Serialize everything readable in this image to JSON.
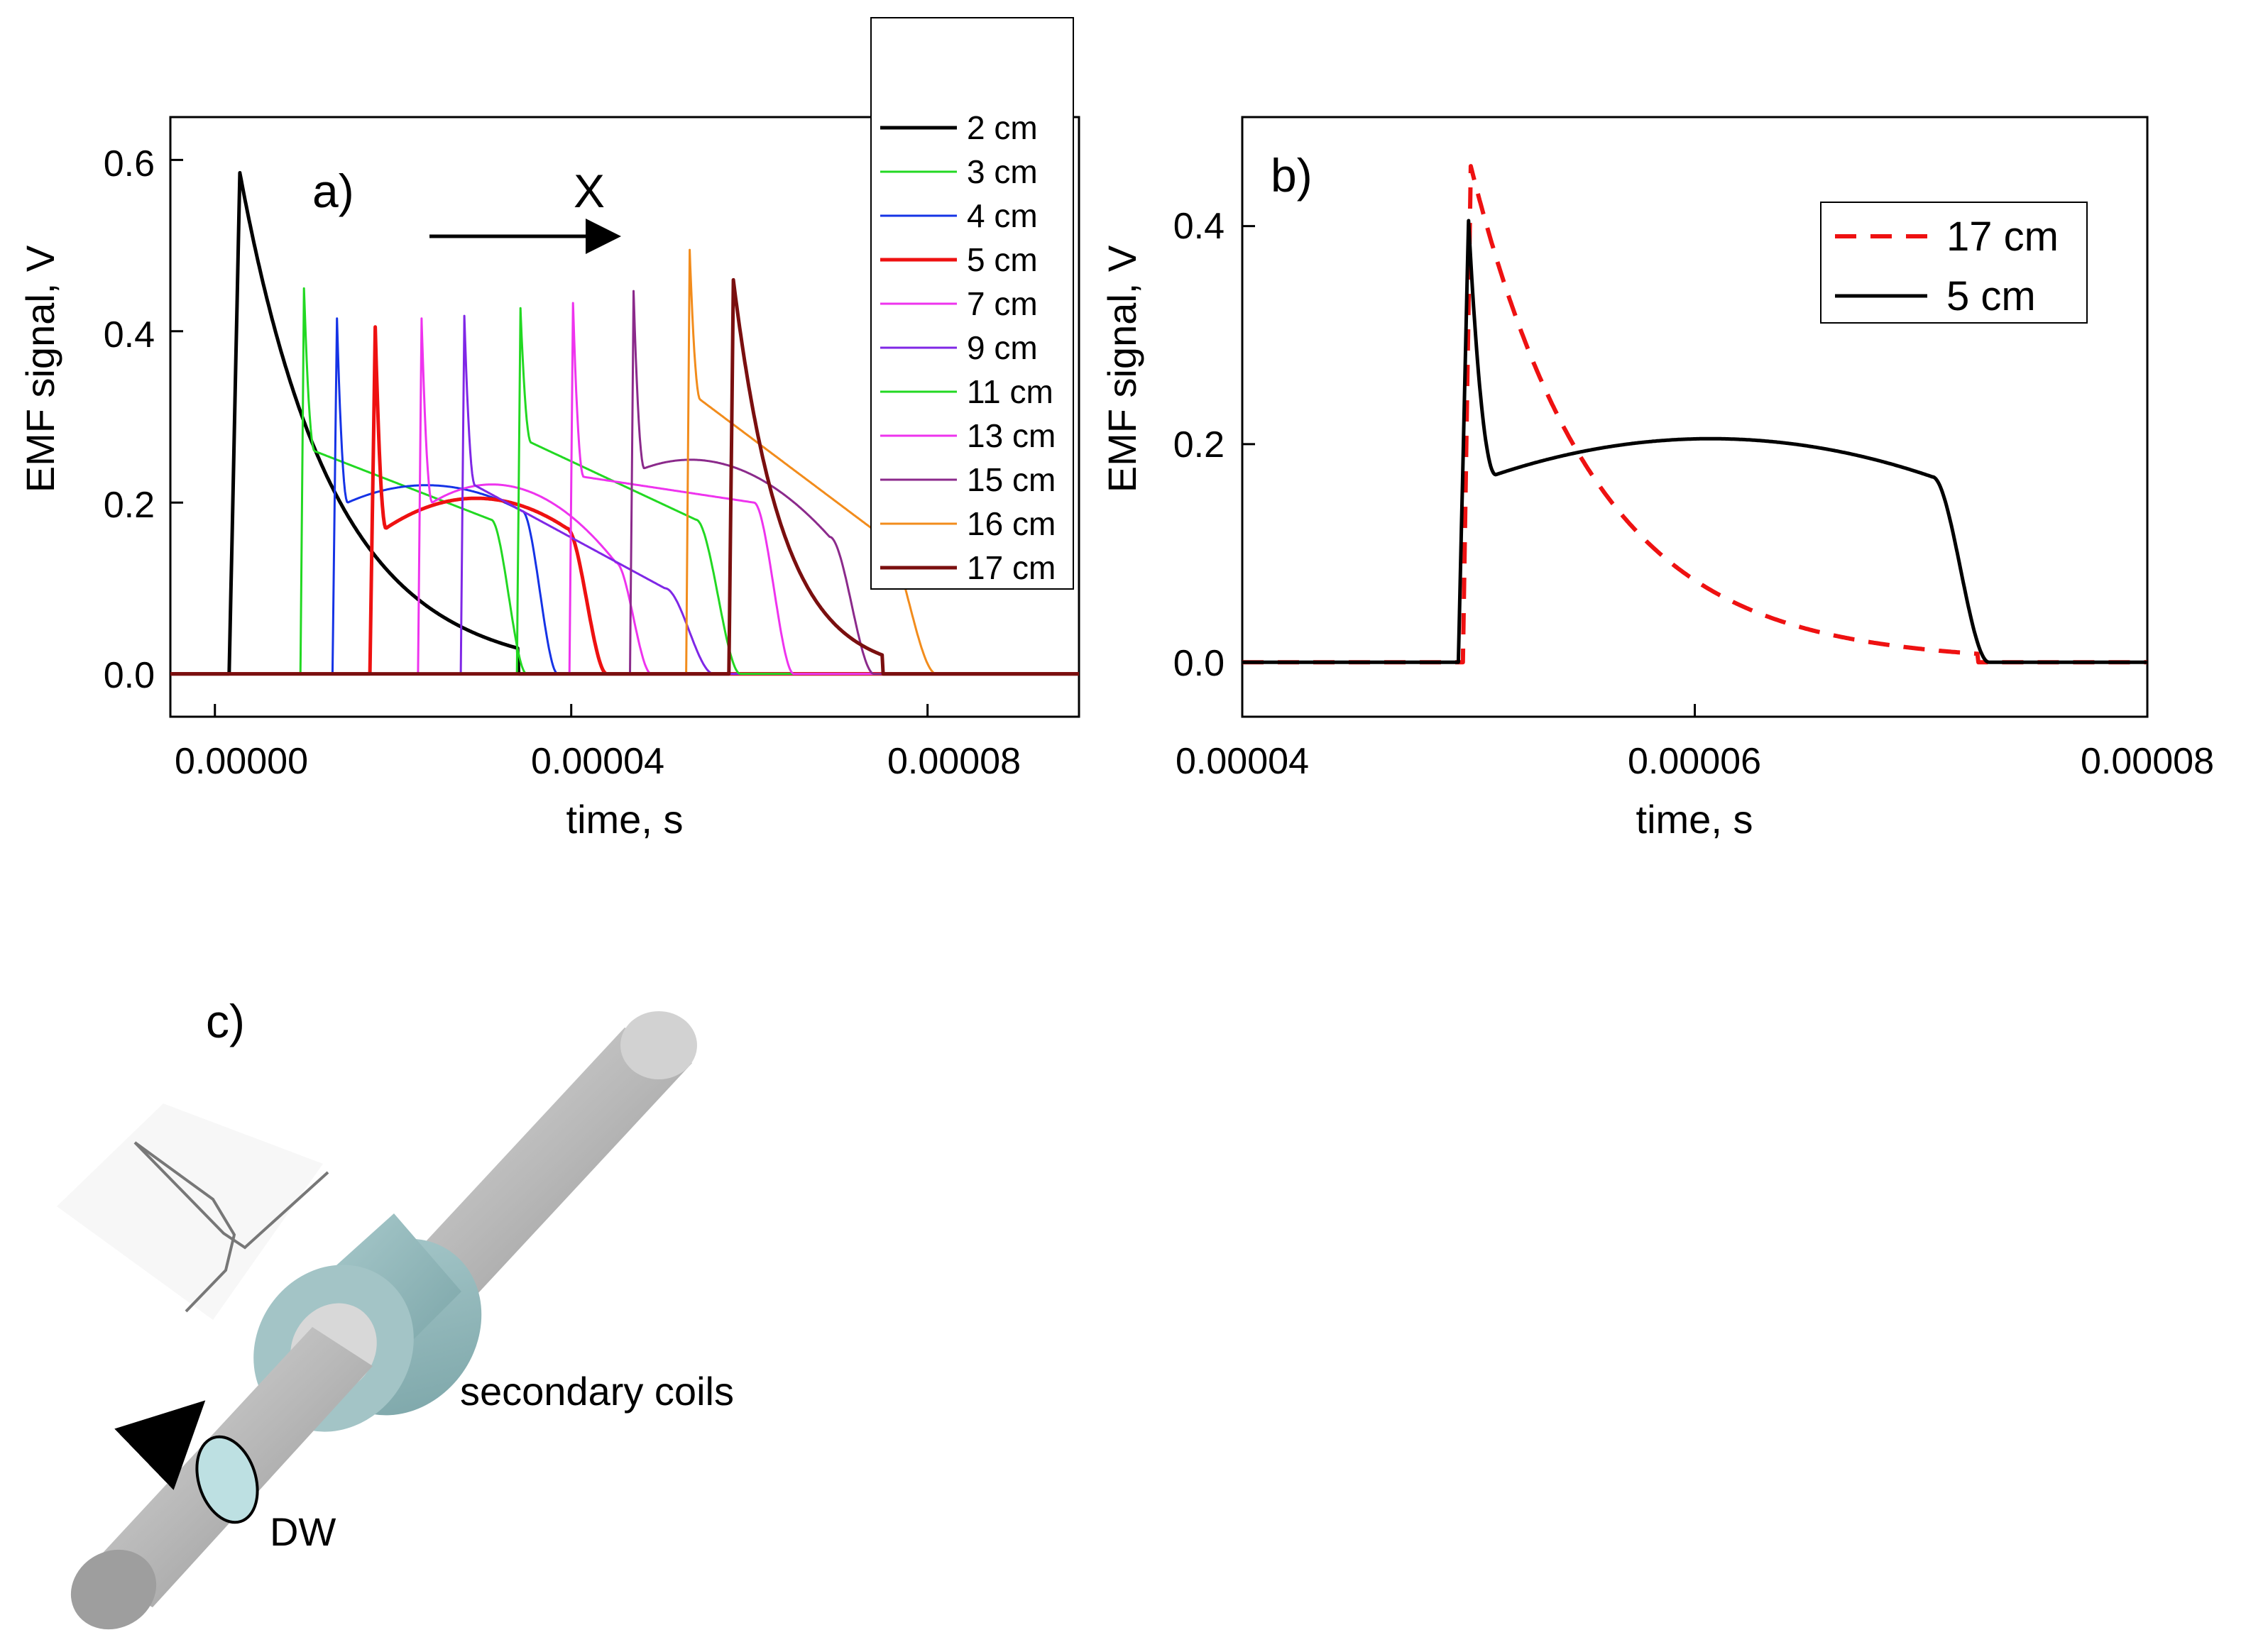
{
  "figure": {
    "panel_a_label": "a)",
    "panel_b_label": "b)",
    "panel_c_label": "c)",
    "arrow_label": "X",
    "diagram": {
      "coil_label": "secondary coils",
      "wall_label": "DW"
    }
  },
  "chart_data": [
    {
      "type": "line",
      "panel": "a)",
      "title": "",
      "xlabel": "time, s",
      "ylabel": "EMF signal, V",
      "xlim": [
        -5e-06,
        9.7e-05
      ],
      "ylim": [
        -0.05,
        0.65
      ],
      "xticks": [
        "0.00000",
        "0.00004",
        "0.00008"
      ],
      "xtick_values": [
        0,
        4e-05,
        8e-05
      ],
      "yticks": [
        "0.0",
        "0.2",
        "0.4",
        "0.6"
      ],
      "ytick_values": [
        0,
        0.2,
        0.4,
        0.6
      ],
      "legend_position": "top-right-outside",
      "series": [
        {
          "name": "2 cm",
          "color": "#000000",
          "width": 5,
          "start": 1.6e-06,
          "peak_time": 2.8e-06,
          "peak": 0.585,
          "kind": "decay",
          "tau": 1.05e-05,
          "end": 3.4e-05
        },
        {
          "name": "3 cm",
          "color": "#22d822",
          "width": 3,
          "start": 9.6e-06,
          "peak_time": 1e-05,
          "peak": 0.45,
          "kind": "plateau",
          "plateau_start": 0.26,
          "plateau_end": 0.18,
          "fall": 3.1e-05,
          "end": 3.5e-05
        },
        {
          "name": "4 cm",
          "color": "#1533e6",
          "width": 3,
          "start": 1.32e-05,
          "peak_time": 1.37e-05,
          "peak": 0.415,
          "kind": "plateau",
          "plateau_start": 0.2,
          "plateau_mid": 0.22,
          "plateau_end": 0.19,
          "fall": 3.45e-05,
          "end": 3.85e-05
        },
        {
          "name": "5 cm",
          "color": "#ee1111",
          "width": 5,
          "start": 1.74e-05,
          "peak_time": 1.8e-05,
          "peak": 0.405,
          "kind": "plateau",
          "plateau_start": 0.17,
          "plateau_mid": 0.205,
          "plateau_end": 0.17,
          "fall": 3.95e-05,
          "end": 4.4e-05
        },
        {
          "name": "7 cm",
          "color": "#ee33ee",
          "width": 3,
          "start": 2.28e-05,
          "peak_time": 2.32e-05,
          "peak": 0.415,
          "kind": "plateau",
          "plateau_start": 0.2,
          "plateau_mid": 0.215,
          "plateau_end": 0.13,
          "fall": 4.5e-05,
          "end": 4.9e-05
        },
        {
          "name": "9 cm",
          "color": "#7f27e6",
          "width": 3,
          "start": 2.76e-05,
          "peak_time": 2.8e-05,
          "peak": 0.418,
          "kind": "plateau",
          "plateau_start": 0.22,
          "plateau_end": 0.1,
          "fall": 5.05e-05,
          "end": 5.6e-05
        },
        {
          "name": "11 cm",
          "color": "#22d822",
          "width": 3,
          "start": 3.39e-05,
          "peak_time": 3.43e-05,
          "peak": 0.427,
          "kind": "plateau",
          "plateau_start": 0.27,
          "plateau_end": 0.18,
          "fall": 5.4e-05,
          "end": 5.9e-05
        },
        {
          "name": "13 cm",
          "color": "#ee33ee",
          "width": 3,
          "start": 3.98e-05,
          "peak_time": 4.02e-05,
          "peak": 0.433,
          "kind": "plateau",
          "plateau_start": 0.23,
          "plateau_end": 0.2,
          "fall": 6.05e-05,
          "end": 6.5e-05
        },
        {
          "name": "15 cm",
          "color": "#8b2a8b",
          "width": 3,
          "start": 4.66e-05,
          "peak_time": 4.7e-05,
          "peak": 0.447,
          "kind": "plateau",
          "plateau_start": 0.24,
          "plateau_mid": 0.24,
          "plateau_end": 0.16,
          "fall": 6.9e-05,
          "end": 7.4e-05
        },
        {
          "name": "16 cm",
          "color": "#f28c1c",
          "width": 3,
          "start": 5.29e-05,
          "peak_time": 5.33e-05,
          "peak": 0.495,
          "kind": "plateau",
          "plateau_start": 0.32,
          "plateau_end": 0.16,
          "fall": 7.5e-05,
          "end": 8.1e-05
        },
        {
          "name": "17 cm",
          "color": "#7a0f0f",
          "width": 5,
          "start": 5.77e-05,
          "peak_time": 5.82e-05,
          "peak": 0.46,
          "kind": "decay",
          "tau": 5.5e-06,
          "end": 7.5e-05
        }
      ]
    },
    {
      "type": "line",
      "panel": "b)",
      "title": "",
      "xlabel": "time, s",
      "ylabel": "EMF signal, V",
      "xlim": [
        4e-05,
        8e-05
      ],
      "ylim": [
        -0.05,
        0.5
      ],
      "xticks": [
        "0.00004",
        "0.00006",
        "0.00008"
      ],
      "xtick_values": [
        4e-05,
        6e-05,
        8e-05
      ],
      "yticks": [
        "0.0",
        "0.2",
        "0.4"
      ],
      "ytick_values": [
        0,
        0.2,
        0.4
      ],
      "legend_position": "top-right",
      "series": [
        {
          "name": "17 cm",
          "color": "#ee1111",
          "width": 6,
          "dash": "30,20",
          "start": 4.975e-05,
          "peak_time": 5.01e-05,
          "peak": 0.455,
          "kind": "decay",
          "tau": 5.5e-06,
          "end": 7.25e-05
        },
        {
          "name": "5 cm",
          "color": "#000000",
          "width": 5,
          "start": 4.955e-05,
          "peak_time": 5e-05,
          "peak": 0.405,
          "kind": "plateau",
          "plateau_start": 0.172,
          "plateau_mid": 0.205,
          "plateau_end": 0.17,
          "fall": 7.05e-05,
          "end": 7.3e-05
        }
      ]
    }
  ]
}
